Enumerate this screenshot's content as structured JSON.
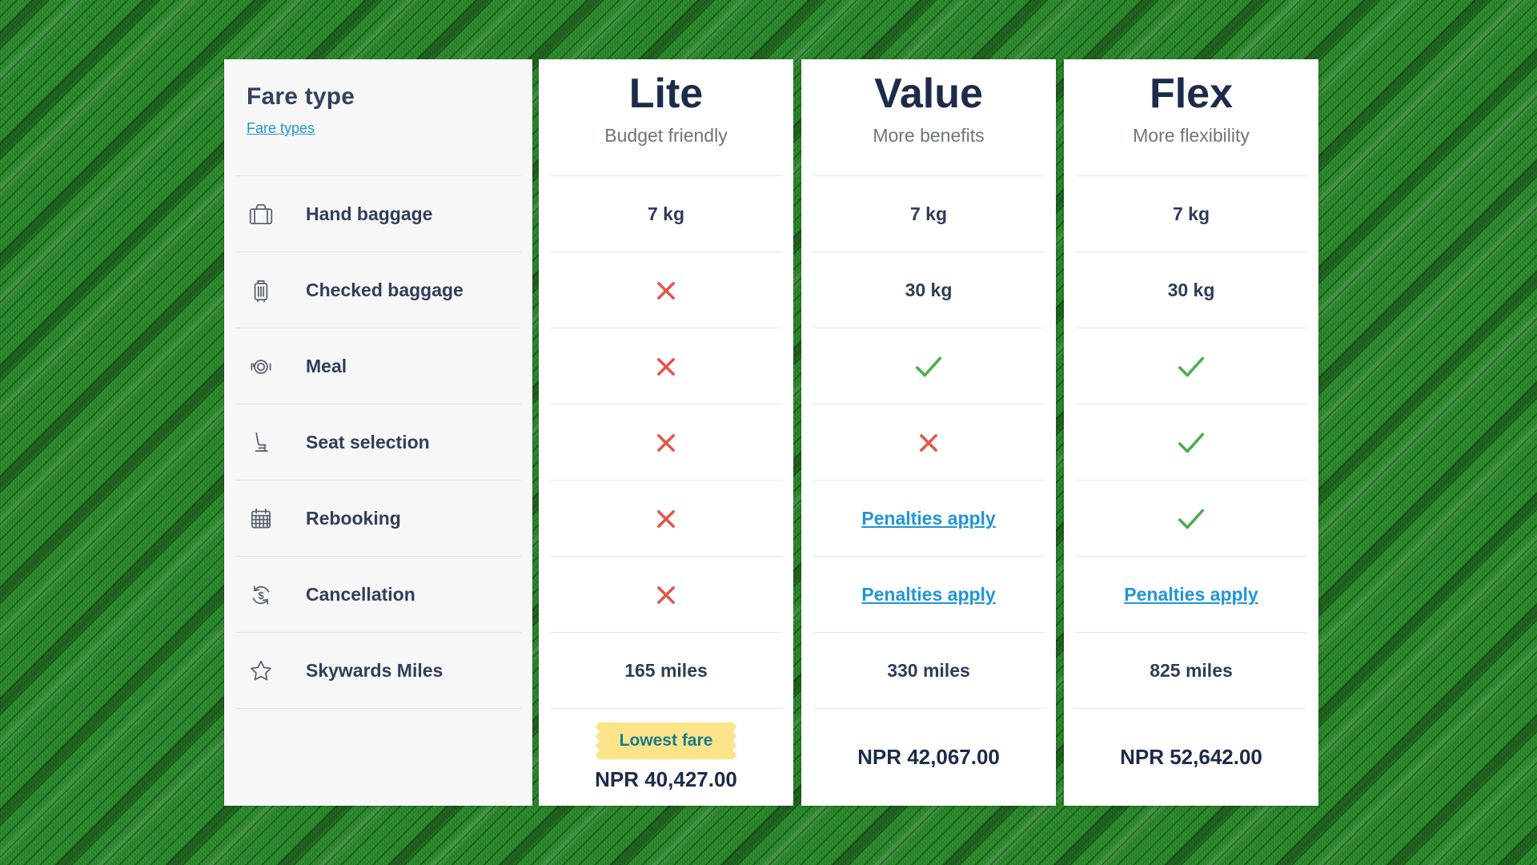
{
  "table": {
    "header": {
      "title": "Fare type",
      "link_label": "Fare types"
    },
    "features": [
      {
        "icon": "hand-baggage",
        "label": "Hand baggage"
      },
      {
        "icon": "checked-baggage",
        "label": "Checked baggage"
      },
      {
        "icon": "meal",
        "label": "Meal"
      },
      {
        "icon": "seat-selection",
        "label": "Seat selection"
      },
      {
        "icon": "rebooking",
        "label": "Rebooking"
      },
      {
        "icon": "cancellation",
        "label": "Cancellation"
      },
      {
        "icon": "skywards-miles",
        "label": "Skywards Miles"
      }
    ],
    "columns": [
      {
        "name": "Lite",
        "tagline": "Budget friendly",
        "cells": [
          {
            "type": "text",
            "value": "7 kg"
          },
          {
            "type": "cross"
          },
          {
            "type": "cross"
          },
          {
            "type": "cross"
          },
          {
            "type": "cross"
          },
          {
            "type": "cross"
          },
          {
            "type": "text",
            "value": "165 miles"
          }
        ],
        "badge": "Lowest fare",
        "price": "NPR 40,427.00"
      },
      {
        "name": "Value",
        "tagline": "More benefits",
        "cells": [
          {
            "type": "text",
            "value": "7 kg"
          },
          {
            "type": "text",
            "value": "30 kg"
          },
          {
            "type": "check"
          },
          {
            "type": "cross"
          },
          {
            "type": "link",
            "value": "Penalties apply"
          },
          {
            "type": "link",
            "value": "Penalties apply"
          },
          {
            "type": "text",
            "value": "330 miles"
          }
        ],
        "price": "NPR 42,067.00"
      },
      {
        "name": "Flex",
        "tagline": "More flexibility",
        "cells": [
          {
            "type": "text",
            "value": "7 kg"
          },
          {
            "type": "text",
            "value": "30 kg"
          },
          {
            "type": "check"
          },
          {
            "type": "check"
          },
          {
            "type": "check"
          },
          {
            "type": "link",
            "value": "Penalties apply"
          },
          {
            "type": "text",
            "value": "825 miles"
          }
        ],
        "price": "NPR 52,642.00"
      }
    ],
    "colors": {
      "background_green": "#2e8f2e",
      "navy_text": "#1c2b4a",
      "link_blue": "#2096d6",
      "cross_red": "#e2574c",
      "check_green": "#4cae50",
      "badge_bg": "#fbe38a",
      "badge_text": "#177b8e",
      "features_col_bg": "#f7f7f7"
    }
  }
}
